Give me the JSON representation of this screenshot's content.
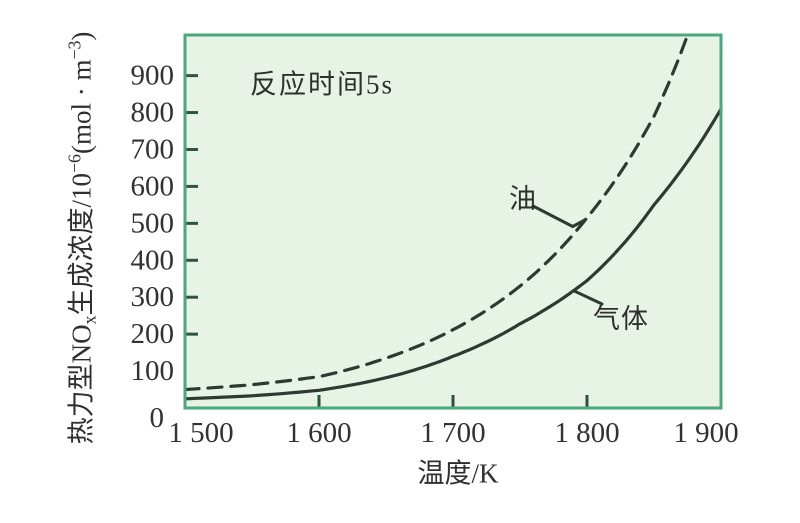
{
  "figure": {
    "background": "#ffffff",
    "description": "Thermal NOx formation concentration vs temperature for oil (dashed) and gas (solid) fuels, reaction time 5 s"
  },
  "chart_data": {
    "type": "line",
    "title": "",
    "annotation": "反应时间5s",
    "xlabel": "温度/K",
    "ylabel": "热力型NOₓ生成浓度/10⁻⁶(mol · m⁻³)",
    "ylabel_parts": [
      {
        "t": "热力型NO"
      },
      {
        "t": "x",
        "v": "sub"
      },
      {
        "t": "生成浓度/10"
      },
      {
        "t": "−6",
        "v": "sup"
      },
      {
        "t": "(mol · m"
      },
      {
        "t": "−3",
        "v": "sup"
      },
      {
        "t": ")"
      }
    ],
    "xlim": [
      1500,
      1900
    ],
    "ylim": [
      0,
      1010
    ],
    "grid": false,
    "legend_position": "inline curve labels with pointer lines",
    "x_ticks": [
      {
        "v": 1600,
        "label": "1 600"
      },
      {
        "v": 1700,
        "label": "1 700"
      },
      {
        "v": 1800,
        "label": "1 800"
      }
    ],
    "x_labels": [
      {
        "v": 1500,
        "label": "1 500"
      },
      {
        "v": 1600,
        "label": "1 600"
      },
      {
        "v": 1700,
        "label": "1 700"
      },
      {
        "v": 1800,
        "label": "1 800"
      },
      {
        "v": 1900,
        "label": "1 900"
      }
    ],
    "y_ticks": [
      200,
      300,
      400,
      500,
      600,
      700,
      800,
      900
    ],
    "y_labels": [
      {
        "v": 0,
        "label": "0"
      },
      {
        "v": 100,
        "label": "100"
      },
      {
        "v": 200,
        "label": "200"
      },
      {
        "v": 300,
        "label": "300"
      },
      {
        "v": 400,
        "label": "400"
      },
      {
        "v": 500,
        "label": "500"
      },
      {
        "v": 600,
        "label": "600"
      },
      {
        "v": 700,
        "label": "700"
      },
      {
        "v": 800,
        "label": "800"
      },
      {
        "v": 900,
        "label": "900"
      }
    ],
    "series": [
      {
        "name": "气体",
        "line": "solid",
        "x": [
          1500,
          1550,
          1600,
          1650,
          1700,
          1750,
          1800,
          1850,
          1900
        ],
        "y": [
          25,
          33,
          48,
          82,
          140,
          228,
          345,
          550,
          810
        ]
      },
      {
        "name": "油",
        "line": "dashed",
        "x": [
          1500,
          1550,
          1600,
          1650,
          1700,
          1750,
          1800,
          1850,
          1880
        ],
        "y": [
          50,
          63,
          85,
          135,
          212,
          330,
          515,
          790,
          1060
        ]
      }
    ],
    "pointers": [
      {
        "text": "气体",
        "series_index": 0,
        "at_x": 1790
      },
      {
        "text": "油",
        "series_index": 1,
        "at_x": 1799
      }
    ],
    "colors": {
      "frame": "#4aa87c",
      "plot_bg": "#e7f3e5",
      "curve": "#2e3a31",
      "tick": "#2e5244",
      "text": "#323232"
    }
  }
}
